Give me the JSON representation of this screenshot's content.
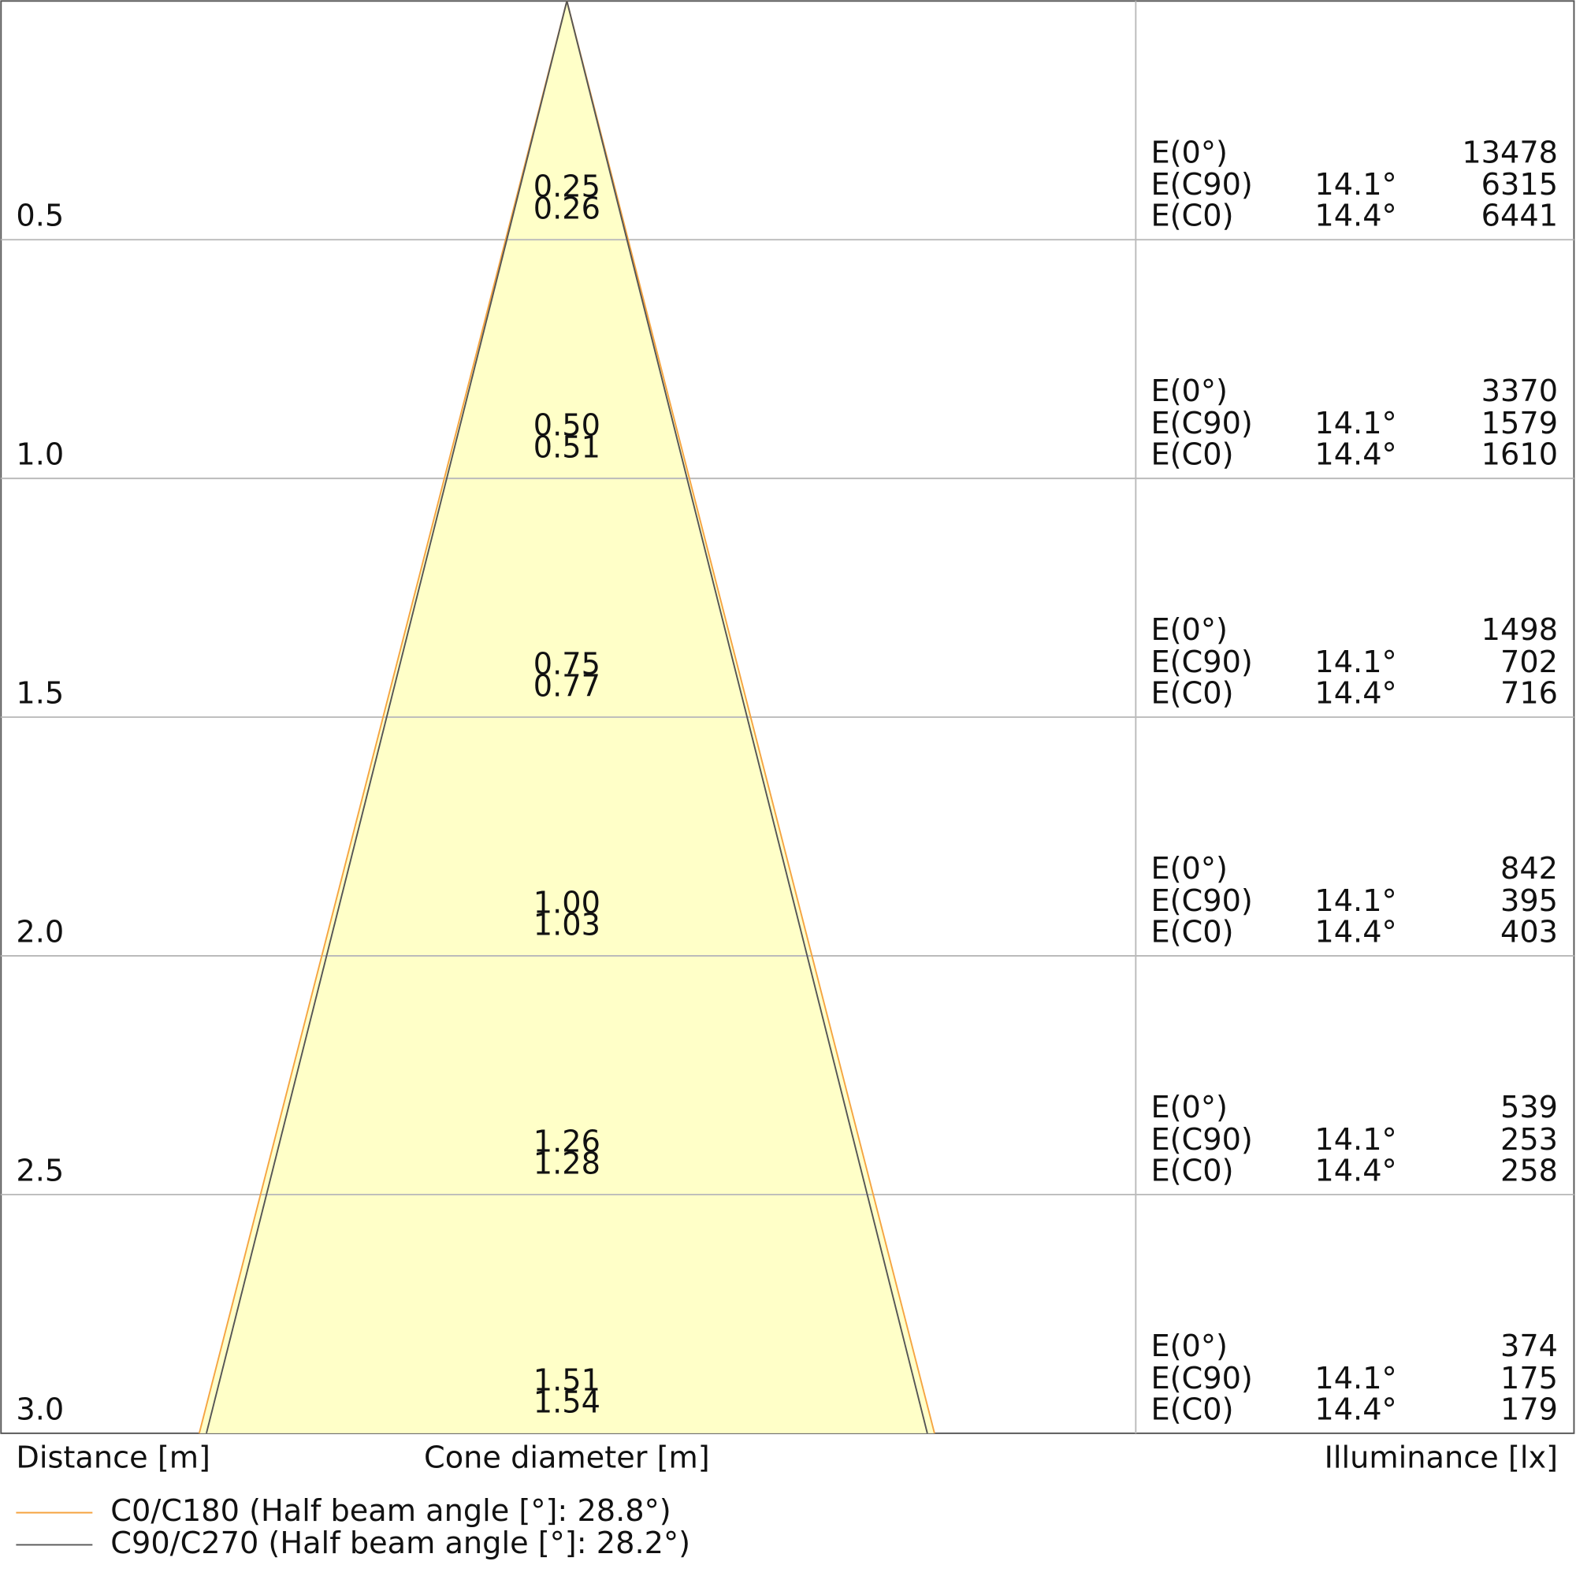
{
  "chart_data": {
    "type": "cone",
    "ylim": [
      0,
      3
    ],
    "yticks": [
      0.5,
      {
        "value": 1,
        "label": "1.0"
      },
      1.5,
      {
        "value": 2,
        "label": "2.0"
      },
      2.5,
      {
        "value": 3,
        "label": "3.0"
      }
    ],
    "grid": true,
    "y_label": "Distance [m]",
    "x_label": "Cone diameter [m]",
    "table_label": "Illuminance [lx]",
    "fill": "#ffffc8",
    "series": [
      {
        "name": "C0/C180 (Half beam angle [°]: 28.8°)",
        "color": "#f5a442",
        "values": [
          0.26,
          0.51,
          0.77,
          1.03,
          1.28,
          1.54
        ],
        "value_labels": [
          "0.26",
          "0.51",
          "0.77",
          "1.03",
          "1.28",
          "1.54"
        ]
      },
      {
        "name": "C90/C270 (Half beam angle [°]: 28.2°)",
        "color": "#555555",
        "values": [
          0.25,
          0.5,
          0.75,
          1,
          1.26,
          1.51
        ],
        "value_labels": [
          "0.25",
          "0.50",
          "0.75",
          "1.00",
          "1.26",
          "1.51"
        ]
      }
    ],
    "illuminance": [
      {
        "label": "E(0°)",
        "values": [
          13478,
          3370,
          1498,
          842,
          539,
          374
        ]
      },
      {
        "label": "E(C90)",
        "angle": "14.1°",
        "values": [
          6315,
          1579,
          702,
          395,
          253,
          175
        ]
      },
      {
        "label": "E(C0)",
        "angle": "14.4°",
        "values": [
          6441,
          1610,
          716,
          403,
          258,
          179
        ]
      }
    ]
  }
}
